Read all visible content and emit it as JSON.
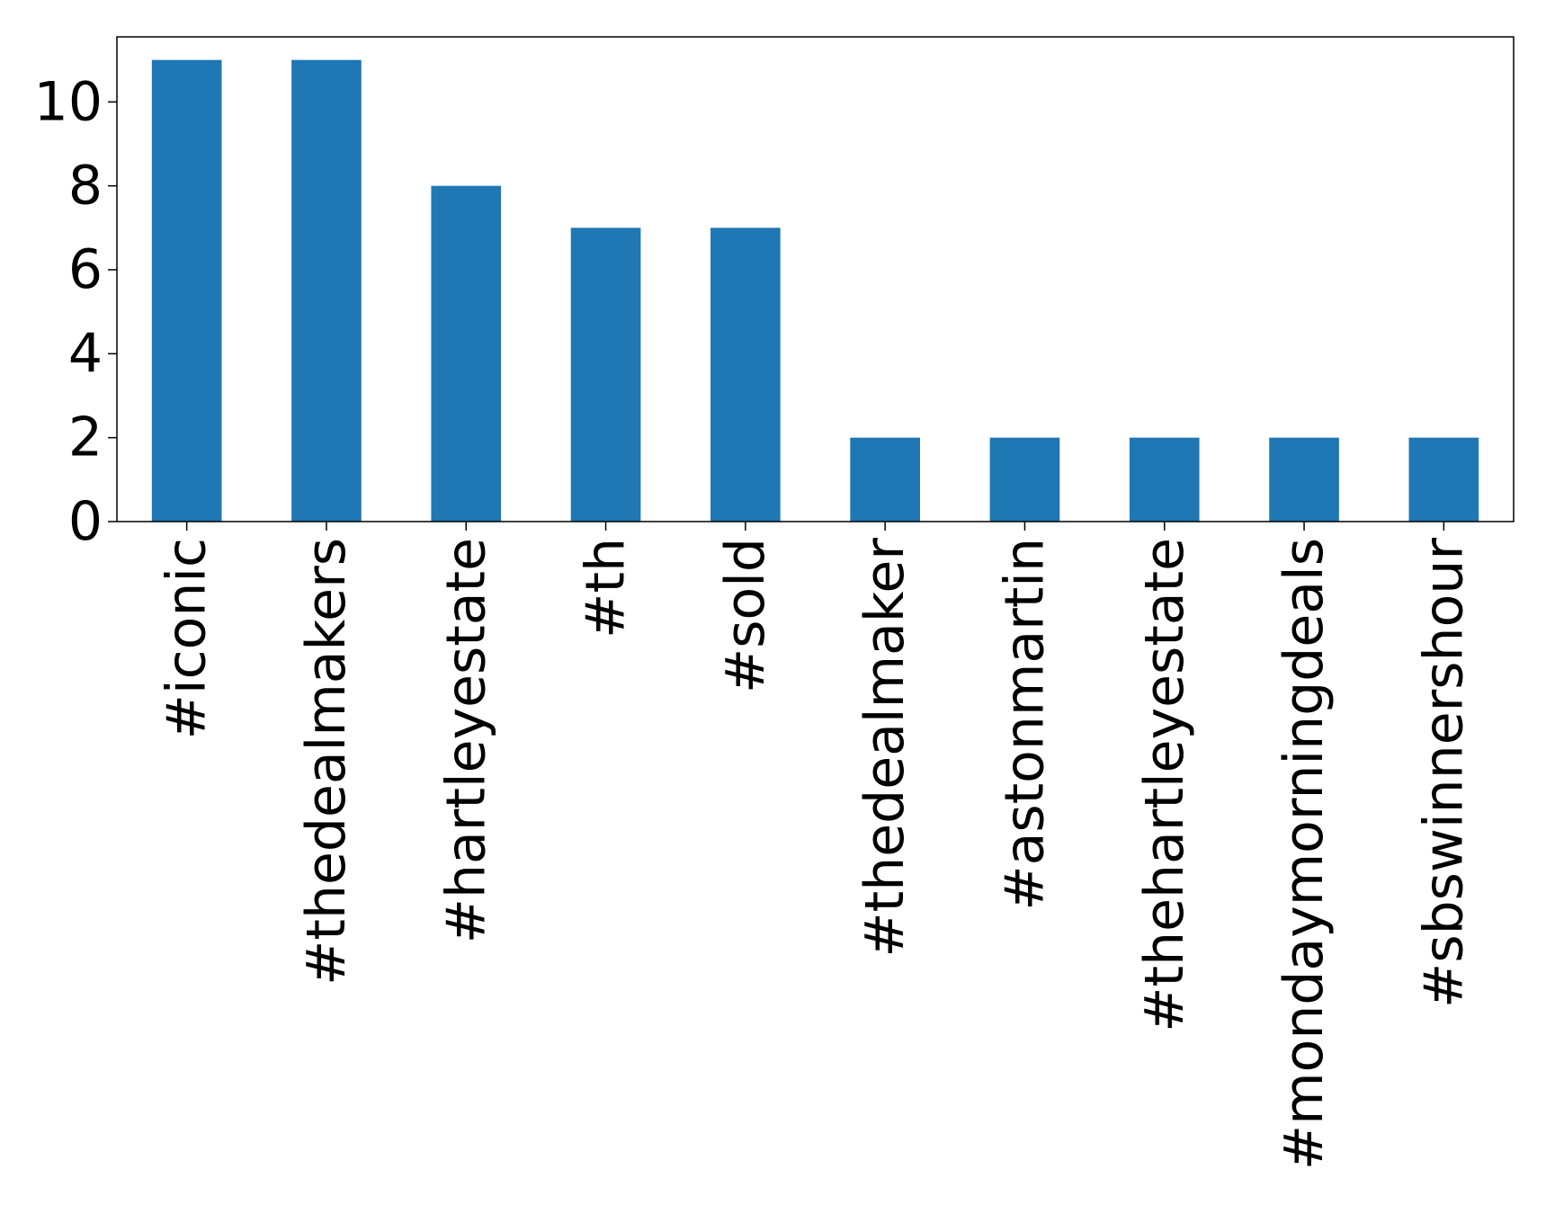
{
  "chart_data": {
    "type": "bar",
    "categories": [
      "#iconic",
      "#thedealmakers",
      "#hartleyestate",
      "#th",
      "#sold",
      "#thedealmaker",
      "#astonmartin",
      "#thehartleyestate",
      "#mondaymorningdeals",
      "#sbswinnershour"
    ],
    "values": [
      11,
      11,
      8,
      7,
      7,
      2,
      2,
      2,
      2,
      2
    ],
    "title": "",
    "xlabel": "",
    "ylabel": "",
    "ylim": [
      0,
      11.55
    ],
    "yticks": [
      "0",
      "2",
      "4",
      "6",
      "8",
      "10"
    ],
    "bar_color": "#1f77b4",
    "grid": false,
    "legend": "none"
  }
}
